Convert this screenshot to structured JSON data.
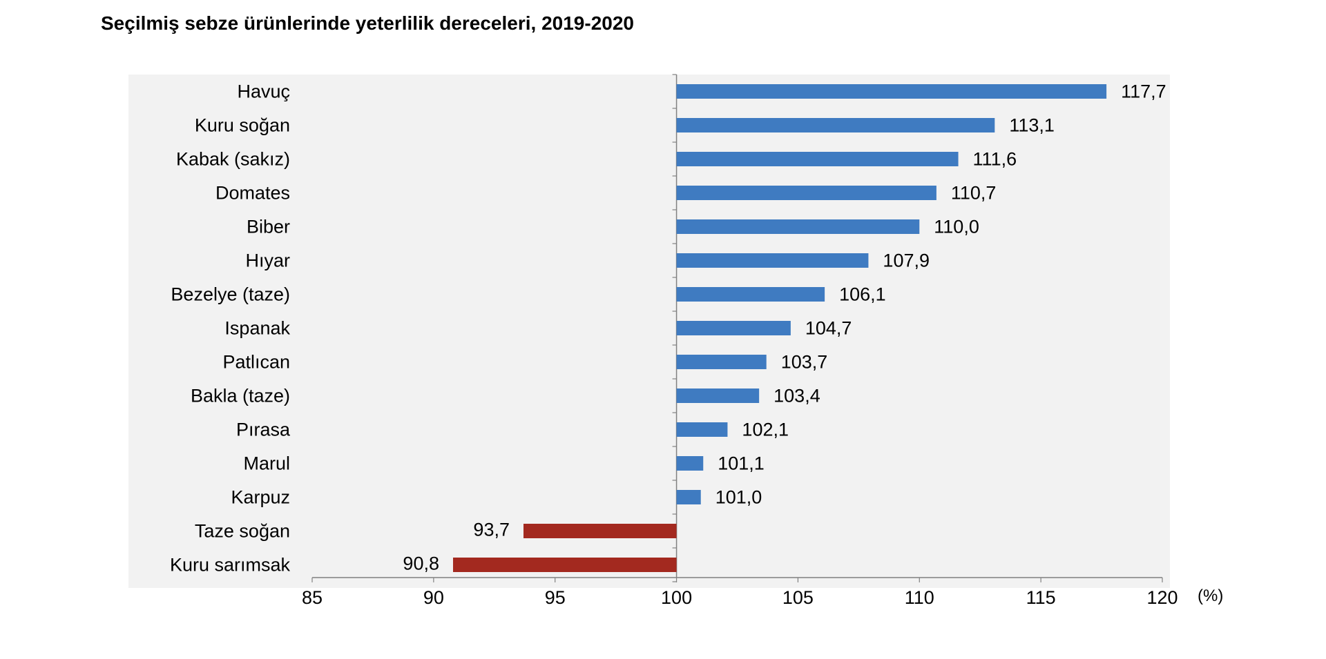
{
  "chart_data": {
    "type": "bar",
    "orientation": "horizontal",
    "title": "Seçilmiş sebze ürünlerinde yeterlilik dereceleri, 2019-2020",
    "xlabel": "(%)",
    "ylabel": "",
    "baseline": 100,
    "xlim": [
      85,
      120
    ],
    "xticks": [
      "85",
      "90",
      "95",
      "100",
      "105",
      "110",
      "115",
      "120"
    ],
    "grid": false,
    "legend": "none",
    "categories": [
      "Havuç",
      "Kuru soğan",
      "Kabak (sakız)",
      "Domates",
      "Biber",
      "Hıyar",
      "Bezelye (taze)",
      "Ispanak",
      "Patlıcan",
      "Bakla (taze)",
      "Pırasa",
      "Marul",
      "Karpuz",
      "Taze soğan",
      "Kuru sarımsak"
    ],
    "values": [
      117.7,
      113.1,
      111.6,
      110.7,
      110.0,
      107.9,
      106.1,
      104.7,
      103.7,
      103.4,
      102.1,
      101.1,
      101.0,
      93.7,
      90.8
    ],
    "value_labels": [
      "117,7",
      "113,1",
      "111,6",
      "110,7",
      "110,0",
      "107,9",
      "106,1",
      "104,7",
      "103,7",
      "103,4",
      "102,1",
      "101,1",
      "101,0",
      "93,7",
      "90,8"
    ],
    "colors": {
      "above_baseline": "#3F7BC1",
      "below_baseline": "#A3291F",
      "plot_background": "#F2F2F2",
      "axis": "#808080"
    }
  }
}
